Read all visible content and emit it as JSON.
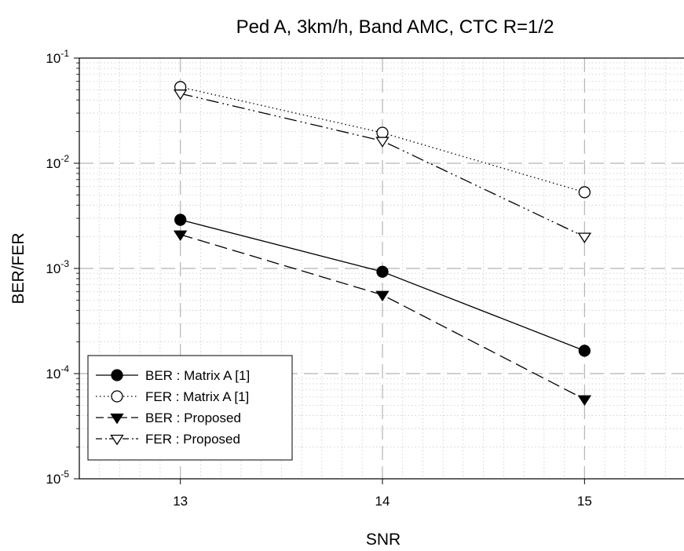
{
  "chart_data": {
    "type": "line",
    "title": "Ped A, 3km/h, Band AMC, CTC R=1/2",
    "xlabel": "SNR",
    "ylabel": "BER/FER",
    "x": [
      13,
      14,
      15
    ],
    "xlim": [
      12.5,
      15.5
    ],
    "ylim": [
      1e-05,
      0.1
    ],
    "yscale": "log",
    "x_ticks": [
      13,
      14,
      15
    ],
    "y_ticks": [
      {
        "base": "10",
        "exp": "-1"
      },
      {
        "base": "10",
        "exp": "-2"
      },
      {
        "base": "10",
        "exp": "-3"
      },
      {
        "base": "10",
        "exp": "-4"
      },
      {
        "base": "10",
        "exp": "-5"
      }
    ],
    "grid": true,
    "legend_position": "bottom-left",
    "series": [
      {
        "name": "BER : Matrix A [1]",
        "values": [
          0.0029,
          0.00093,
          0.000165
        ],
        "marker": "filled-circle",
        "line": "solid"
      },
      {
        "name": "FER : Matrix A [1]",
        "values": [
          0.053,
          0.0195,
          0.0053
        ],
        "marker": "open-circle",
        "line": "dotted"
      },
      {
        "name": "BER : Proposed",
        "values": [
          0.0021,
          0.00056,
          5.7e-05
        ],
        "marker": "filled-triangle-down",
        "line": "dashed"
      },
      {
        "name": "FER : Proposed",
        "values": [
          0.046,
          0.0163,
          0.002
        ],
        "marker": "open-triangle-down",
        "line": "dash-dot-dot"
      }
    ]
  }
}
